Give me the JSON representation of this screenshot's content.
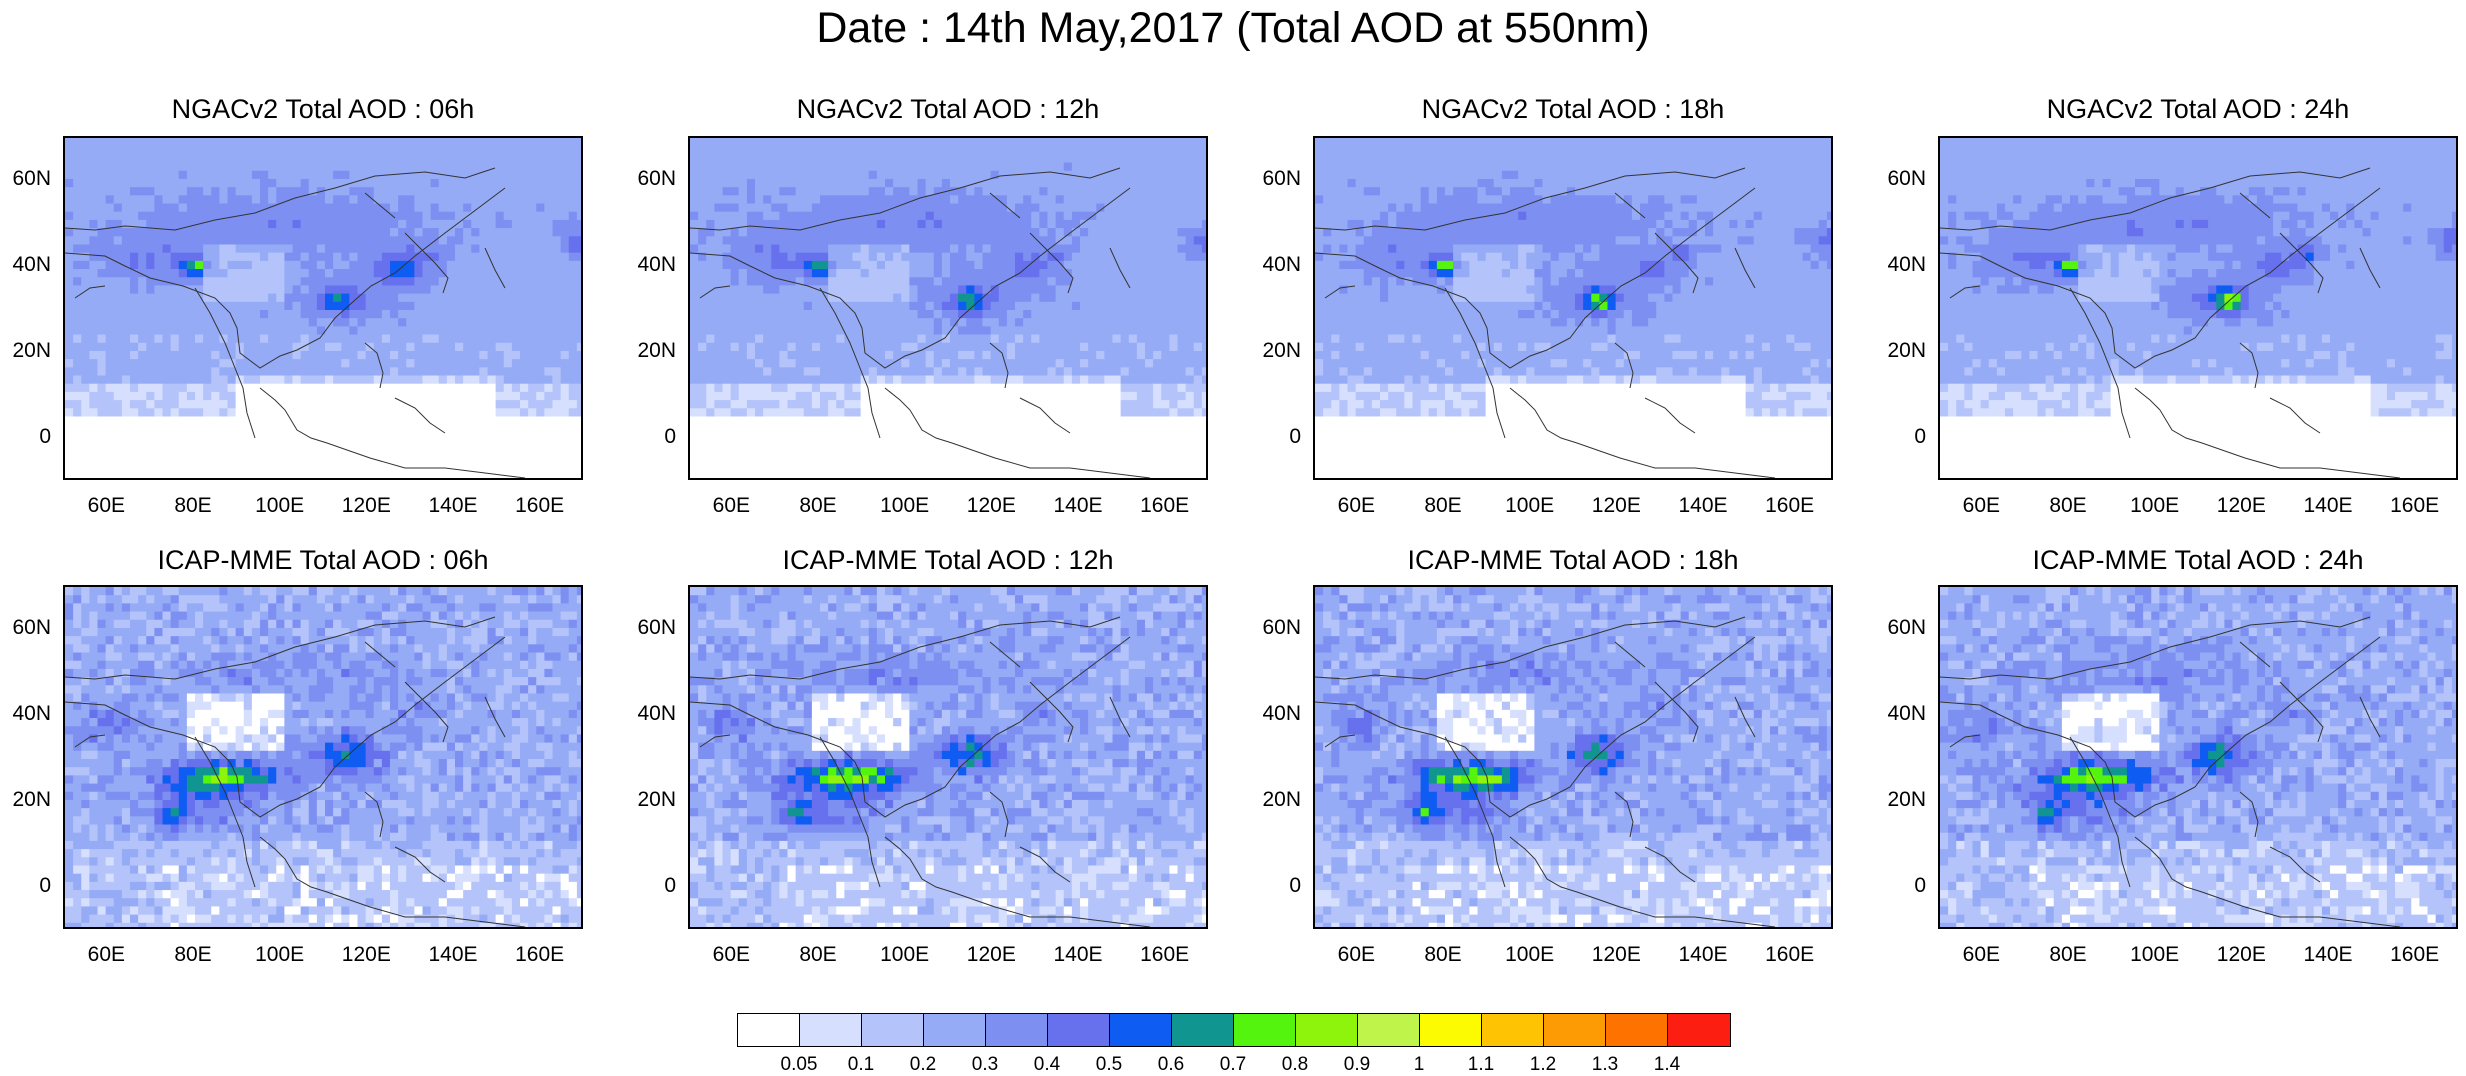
{
  "title": "Date : 14th May,2017 (Total AOD at 550nm)",
  "panels": [
    {
      "title": "NGACv2 Total AOD : 06h",
      "model": "NGACv2",
      "hour": 6
    },
    {
      "title": "NGACv2 Total AOD : 12h",
      "model": "NGACv2",
      "hour": 12
    },
    {
      "title": "NGACv2 Total AOD : 18h",
      "model": "NGACv2",
      "hour": 18
    },
    {
      "title": "NGACv2 Total AOD : 24h",
      "model": "NGACv2",
      "hour": 24
    },
    {
      "title": "ICAP-MME Total AOD : 06h",
      "model": "ICAP-MME",
      "hour": 6
    },
    {
      "title": "ICAP-MME Total AOD : 12h",
      "model": "ICAP-MME",
      "hour": 12
    },
    {
      "title": "ICAP-MME Total AOD : 18h",
      "model": "ICAP-MME",
      "hour": 18
    },
    {
      "title": "ICAP-MME Total AOD : 24h",
      "model": "ICAP-MME",
      "hour": 24
    }
  ],
  "map_extent": {
    "lon": [
      50,
      170
    ],
    "lat": [
      -10,
      70
    ]
  },
  "lat_ticks": [
    "60N",
    "40N",
    "20N",
    "0"
  ],
  "lon_ticks": [
    "60E",
    "80E",
    "100E",
    "120E",
    "140E",
    "160E"
  ],
  "colorbar": {
    "labels": [
      "0.05",
      "0.1",
      "0.2",
      "0.3",
      "0.4",
      "0.5",
      "0.6",
      "0.7",
      "0.8",
      "0.9",
      "1",
      "1.1",
      "1.2",
      "1.3",
      "1.4"
    ],
    "colors": [
      "#ffffff",
      "#d6dffd",
      "#b4c4fa",
      "#96abf6",
      "#7d90f2",
      "#6771ee",
      "#0f5cf2",
      "#109590",
      "#55f40e",
      "#8ef40c",
      "#bff54b",
      "#fdfb02",
      "#fec302",
      "#fd9b04",
      "#fe7200",
      "#fd1e12"
    ]
  }
}
